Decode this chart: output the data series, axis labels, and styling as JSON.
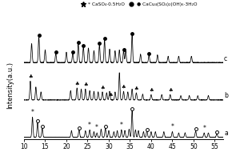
{
  "ylabel": "Intensity(a.u.)",
  "xlim": [
    10,
    57
  ],
  "xticks": [
    10,
    15,
    20,
    25,
    30,
    35,
    40,
    45,
    50,
    55
  ],
  "legend1_label": "* CaSO₄·0.5H₂O",
  "legend2_label": "● CaCu₄(SO₄)₂(OH)₆·3H₂O",
  "background_color": "#ffffff",
  "line_color": "black",
  "offsets": [
    0.0,
    0.3,
    0.6
  ],
  "labels": [
    "a",
    "b",
    "c"
  ],
  "seed": 42,
  "peaks_a": [
    12.0,
    13.2,
    14.3,
    21.2,
    23.0,
    24.5,
    25.5,
    26.5,
    27.2,
    28.2,
    29.2,
    30.0,
    31.2,
    32.0,
    33.0,
    33.8,
    34.8,
    35.5,
    36.3,
    37.0,
    38.2,
    39.0,
    40.0,
    41.0,
    43.0,
    45.0,
    46.5,
    48.0,
    50.5,
    52.5,
    53.5,
    55.5
  ],
  "heights_a": [
    0.55,
    0.4,
    0.25,
    0.18,
    0.22,
    0.18,
    0.2,
    0.15,
    0.12,
    0.22,
    0.25,
    0.18,
    0.15,
    0.18,
    0.2,
    0.18,
    0.22,
    0.75,
    0.2,
    0.18,
    0.15,
    0.18,
    0.15,
    0.15,
    0.15,
    0.15,
    0.12,
    0.12,
    0.18,
    0.12,
    0.12,
    0.1
  ],
  "peaks_b": [
    11.5,
    12.8,
    14.0,
    21.0,
    22.5,
    23.5,
    24.5,
    25.5,
    26.5,
    27.5,
    28.5,
    29.5,
    30.2,
    31.5,
    32.5,
    33.5,
    34.5,
    35.5,
    36.5,
    38.0,
    40.0,
    42.5,
    44.5,
    47.0,
    49.0,
    51.0,
    53.5
  ],
  "heights_b": [
    0.65,
    0.45,
    0.28,
    0.32,
    0.42,
    0.38,
    0.38,
    0.32,
    0.3,
    0.28,
    0.28,
    0.25,
    0.3,
    0.28,
    0.95,
    0.3,
    0.28,
    0.38,
    0.25,
    0.2,
    0.18,
    0.18,
    0.18,
    0.15,
    0.15,
    0.15,
    0.15
  ],
  "peaks_c": [
    11.8,
    13.5,
    15.0,
    17.5,
    20.0,
    21.5,
    22.8,
    24.0,
    25.2,
    26.5,
    27.8,
    29.0,
    30.2,
    31.5,
    32.5,
    33.5,
    34.0,
    35.5,
    37.5,
    39.5,
    41.5,
    44.0,
    46.5,
    49.5
  ],
  "heights_c": [
    0.45,
    0.62,
    0.3,
    0.22,
    0.25,
    0.22,
    0.45,
    0.38,
    0.35,
    0.28,
    0.42,
    0.55,
    0.32,
    0.28,
    0.3,
    0.28,
    0.28,
    0.65,
    0.2,
    0.18,
    0.18,
    0.15,
    0.15,
    0.15
  ],
  "circle_peaks_a": [
    13.2,
    14.3,
    23.0,
    29.2,
    35.5,
    39.0,
    50.5,
    55.5
  ],
  "star_peaks_a": [
    12.0,
    25.5,
    27.2,
    33.0,
    45.0,
    52.5
  ],
  "club_peaks_b": [
    11.5,
    22.5,
    24.5,
    28.5,
    30.5,
    33.5,
    36.5,
    40.0,
    44.5
  ],
  "dot_peaks_c": [
    13.5,
    17.5,
    21.5,
    22.8,
    24.0,
    27.8,
    29.0,
    33.5,
    35.5,
    39.5
  ]
}
